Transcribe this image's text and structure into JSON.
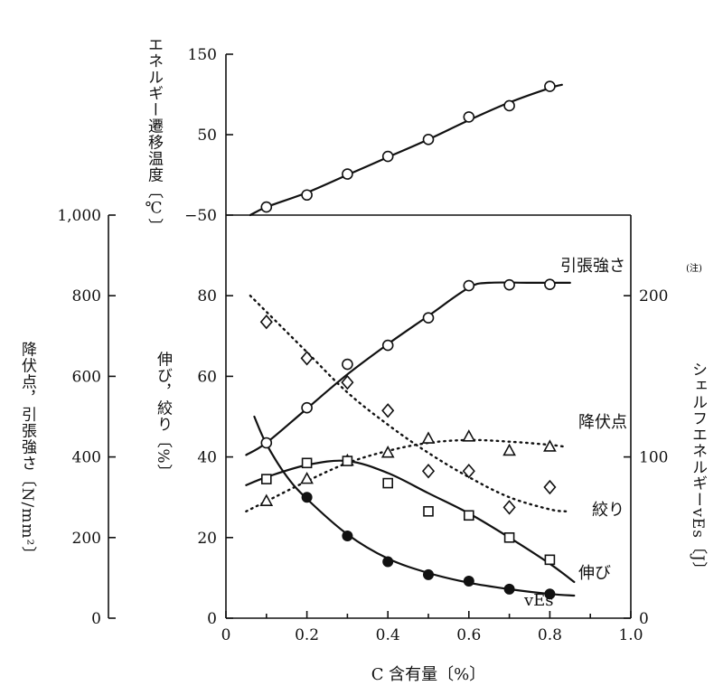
{
  "chart_data": [
    {
      "type": "line",
      "panel": "top",
      "ylabel": "エネルギー遷移温度〔℃〕",
      "ylim": [
        -50,
        150
      ],
      "yticks": [
        "150",
        "50",
        "−50"
      ],
      "series": [
        {
          "marker": "circle-open",
          "points": [
            [
              0.1,
              -40
            ],
            [
              0.2,
              -25
            ],
            [
              0.3,
              1
            ],
            [
              0.4,
              23
            ],
            [
              0.5,
              44
            ],
            [
              0.6,
              72
            ],
            [
              0.7,
              86
            ],
            [
              0.8,
              110
            ]
          ],
          "curve": [
            [
              0.06,
              -50
            ],
            [
              0.1,
              -40
            ],
            [
              0.2,
              -22
            ],
            [
              0.3,
              0
            ],
            [
              0.4,
              22
            ],
            [
              0.5,
              44
            ],
            [
              0.6,
              68
            ],
            [
              0.7,
              90
            ],
            [
              0.8,
              108
            ],
            [
              0.83,
              112
            ]
          ]
        }
      ]
    },
    {
      "type": "line",
      "panel": "bottom",
      "xlabel": "C 含有量〔%〕",
      "xlim": [
        0,
        1.0
      ],
      "xticks": [
        "0",
        "0.2",
        "0.4",
        "0.6",
        "0.8",
        "1.0"
      ],
      "y_outer": {
        "label": "降伏点，引張強さ〔N/mm²〕",
        "ylim": [
          0,
          1000
        ],
        "ticks": [
          "1,000",
          "800",
          "600",
          "400",
          "200",
          "0"
        ]
      },
      "y_inner": {
        "label": "伸び，絞り〔%〕",
        "ylim": [
          0,
          100
        ],
        "ticks": [
          "80",
          "60",
          "40",
          "20",
          "0"
        ]
      },
      "y_right": {
        "label": "シェルフエネルギーvEs〔J〕",
        "superscript": "(注)",
        "ylim": [
          0,
          250
        ],
        "ticks": [
          "200",
          "100",
          "0"
        ]
      },
      "series": [
        {
          "name": "引張強さ",
          "axis": "y_outer",
          "marker": "circle-open",
          "style": "solid",
          "points": [
            [
              0.1,
              435
            ],
            [
              0.2,
              522
            ],
            [
              0.3,
              630
            ],
            [
              0.4,
              677
            ],
            [
              0.5,
              745
            ],
            [
              0.6,
              825
            ],
            [
              0.7,
              827
            ],
            [
              0.8,
              828
            ]
          ],
          "curve": [
            [
              0.05,
              405
            ],
            [
              0.1,
              435
            ],
            [
              0.2,
              520
            ],
            [
              0.3,
              605
            ],
            [
              0.4,
              680
            ],
            [
              0.5,
              750
            ],
            [
              0.6,
              820
            ],
            [
              0.65,
              832
            ],
            [
              0.75,
              832
            ],
            [
              0.85,
              832
            ]
          ]
        },
        {
          "name": "降伏点",
          "axis": "y_outer",
          "marker": "triangle-open",
          "style": "dotted",
          "points": [
            [
              0.1,
              290
            ],
            [
              0.2,
              345
            ],
            [
              0.3,
              390
            ],
            [
              0.4,
              410
            ],
            [
              0.5,
              445
            ],
            [
              0.6,
              450
            ],
            [
              0.7,
              415
            ],
            [
              0.8,
              425
            ]
          ],
          "curve": [
            [
              0.05,
              265
            ],
            [
              0.1,
              290
            ],
            [
              0.2,
              340
            ],
            [
              0.3,
              385
            ],
            [
              0.4,
              415
            ],
            [
              0.5,
              435
            ],
            [
              0.6,
              442
            ],
            [
              0.7,
              438
            ],
            [
              0.8,
              430
            ],
            [
              0.84,
              425
            ]
          ]
        },
        {
          "name": "絞り",
          "axis": "y_inner",
          "marker": "diamond-open",
          "style": "dotted",
          "points": [
            [
              0.1,
              73.5
            ],
            [
              0.2,
              64.5
            ],
            [
              0.3,
              58.5
            ],
            [
              0.4,
              51.5
            ],
            [
              0.5,
              36.5
            ],
            [
              0.6,
              36.5
            ],
            [
              0.7,
              27.5
            ],
            [
              0.8,
              32.5
            ]
          ],
          "curve": [
            [
              0.06,
              80
            ],
            [
              0.1,
              76
            ],
            [
              0.2,
              66
            ],
            [
              0.3,
              56
            ],
            [
              0.4,
              48
            ],
            [
              0.5,
              41
            ],
            [
              0.6,
              35
            ],
            [
              0.7,
              30
            ],
            [
              0.8,
              27
            ],
            [
              0.84,
              26.5
            ]
          ]
        },
        {
          "name": "伸び",
          "axis": "y_inner",
          "marker": "square-open",
          "style": "solid",
          "points": [
            [
              0.1,
              34.5
            ],
            [
              0.2,
              38.5
            ],
            [
              0.3,
              39
            ],
            [
              0.4,
              33.5
            ],
            [
              0.5,
              26.5
            ],
            [
              0.6,
              25.5
            ],
            [
              0.7,
              20
            ],
            [
              0.8,
              14.5
            ]
          ],
          "curve": [
            [
              0.05,
              33
            ],
            [
              0.1,
              35
            ],
            [
              0.2,
              38
            ],
            [
              0.3,
              39
            ],
            [
              0.4,
              36
            ],
            [
              0.5,
              31
            ],
            [
              0.6,
              26
            ],
            [
              0.7,
              20
            ],
            [
              0.8,
              13.5
            ],
            [
              0.86,
              9
            ]
          ]
        },
        {
          "name": "vEs",
          "axis": "y_right",
          "marker": "circle-filled",
          "style": "solid",
          "points": [
            [
              0.2,
              75
            ],
            [
              0.3,
              51
            ],
            [
              0.4,
              35
            ],
            [
              0.5,
              27
            ],
            [
              0.6,
              23
            ],
            [
              0.7,
              18
            ],
            [
              0.8,
              15
            ]
          ],
          "curve": [
            [
              0.07,
              125
            ],
            [
              0.1,
              108
            ],
            [
              0.15,
              88
            ],
            [
              0.2,
              74
            ],
            [
              0.3,
              52
            ],
            [
              0.4,
              37
            ],
            [
              0.5,
              28
            ],
            [
              0.6,
              22
            ],
            [
              0.7,
              18
            ],
            [
              0.8,
              15
            ],
            [
              0.86,
              14
            ]
          ]
        }
      ]
    }
  ]
}
